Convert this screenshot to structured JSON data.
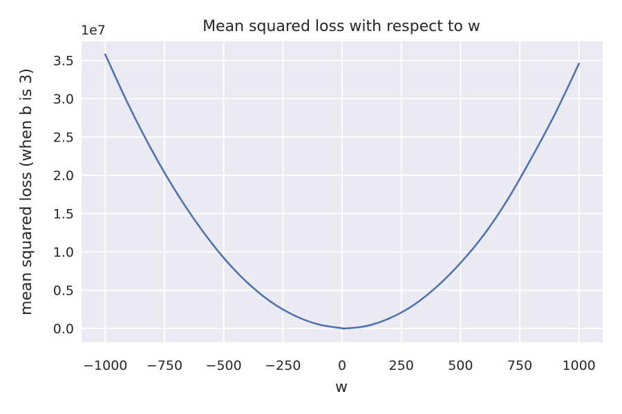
{
  "chart_data": {
    "type": "line",
    "title": "Mean squared loss with respect to w",
    "xlabel": "w",
    "ylabel": "mean squared loss (when b is 3)",
    "y_offset_label": "1e7",
    "xlim": [
      -1100,
      1100
    ],
    "ylim": [
      -1800000,
      37500000
    ],
    "x_ticks": [
      -1000,
      -750,
      -500,
      -250,
      0,
      250,
      500,
      750,
      1000
    ],
    "x_tick_labels": [
      "−1000",
      "−750",
      "−500",
      "−250",
      "0",
      "250",
      "500",
      "750",
      "1000"
    ],
    "y_ticks": [
      0,
      5000000,
      10000000,
      15000000,
      20000000,
      25000000,
      30000000,
      35000000
    ],
    "y_tick_labels": [
      "0.0",
      "0.5",
      "1.0",
      "1.5",
      "2.0",
      "2.5",
      "3.0",
      "3.5"
    ],
    "grid": true,
    "background": "#eaeaf2",
    "series": [
      {
        "color": "#4c72b0",
        "x": [
          -1000,
          -900,
          -800,
          -700,
          -600,
          -500,
          -400,
          -300,
          -200,
          -100,
          0,
          10,
          100,
          200,
          300,
          400,
          500,
          600,
          700,
          800,
          900,
          1000
        ],
        "y": [
          35800000,
          29100000,
          23100000,
          17800000,
          13200000,
          9230000,
          5990000,
          3470000,
          1670000,
          530000,
          30000,
          0,
          300000,
          1330000,
          3020000,
          5460000,
          8560000,
          12300000,
          16900000,
          22300000,
          28100000,
          34600000
        ]
      }
    ]
  }
}
